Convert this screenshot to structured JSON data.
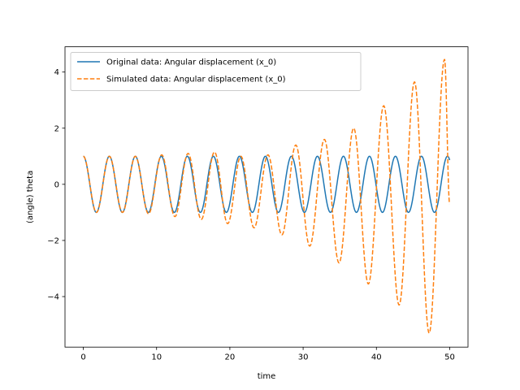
{
  "chart_data": {
    "type": "line",
    "title": "",
    "xlabel": "time",
    "ylabel": "(angle) theta",
    "xlim": [
      -2.5,
      52.5
    ],
    "ylim": [
      -5.8,
      4.9
    ],
    "xticks": [
      0,
      10,
      20,
      30,
      40,
      50
    ],
    "xtick_labels": [
      "0",
      "10",
      "20",
      "30",
      "40",
      "50"
    ],
    "yticks": [
      -4,
      -2,
      0,
      2,
      4
    ],
    "ytick_labels": [
      "−4",
      "−2",
      "0",
      "2",
      "4"
    ],
    "grid": false,
    "legend_position": "upper-left",
    "colors": {
      "original": "#1f77b4",
      "simulated": "#ff7f0e"
    },
    "series": [
      {
        "name": "Original data: Angular displacement (x_0)",
        "style": "solid",
        "model": {
          "kind": "cosine",
          "amplitude": 1.0,
          "period": 3.55,
          "t_start": 0,
          "t_end": 50
        }
      },
      {
        "name": "Simulated data: Angular displacement (x_0)",
        "style": "dashed",
        "model": {
          "kind": "growing-cosine",
          "period_start": 3.55,
          "period_end": 3.78,
          "extrema": [
            {
              "t": 0.0,
              "y": 1.0
            },
            {
              "t": 1.8,
              "y": -1.0
            },
            {
              "t": 3.55,
              "y": 1.0
            },
            {
              "t": 5.35,
              "y": -1.0
            },
            {
              "t": 7.1,
              "y": 1.0
            },
            {
              "t": 8.9,
              "y": -1.05
            },
            {
              "t": 10.7,
              "y": 1.05
            },
            {
              "t": 12.5,
              "y": -1.15
            },
            {
              "t": 14.3,
              "y": 1.1
            },
            {
              "t": 16.1,
              "y": -1.25
            },
            {
              "t": 17.9,
              "y": 1.15
            },
            {
              "t": 19.7,
              "y": -1.4
            },
            {
              "t": 21.5,
              "y": 1.0
            },
            {
              "t": 23.3,
              "y": -1.55
            },
            {
              "t": 25.2,
              "y": 1.05
            },
            {
              "t": 27.1,
              "y": -1.8
            },
            {
              "t": 29.0,
              "y": 1.4
            },
            {
              "t": 30.9,
              "y": -2.2
            },
            {
              "t": 32.9,
              "y": 1.6
            },
            {
              "t": 34.9,
              "y": -2.8
            },
            {
              "t": 36.9,
              "y": 2.0
            },
            {
              "t": 38.9,
              "y": -3.55
            },
            {
              "t": 41.0,
              "y": 2.8
            },
            {
              "t": 43.1,
              "y": -4.3
            },
            {
              "t": 45.2,
              "y": 3.65
            },
            {
              "t": 47.2,
              "y": -5.3
            },
            {
              "t": 49.3,
              "y": 4.45
            },
            {
              "t": 50.0,
              "y": -0.7
            }
          ]
        }
      }
    ]
  }
}
